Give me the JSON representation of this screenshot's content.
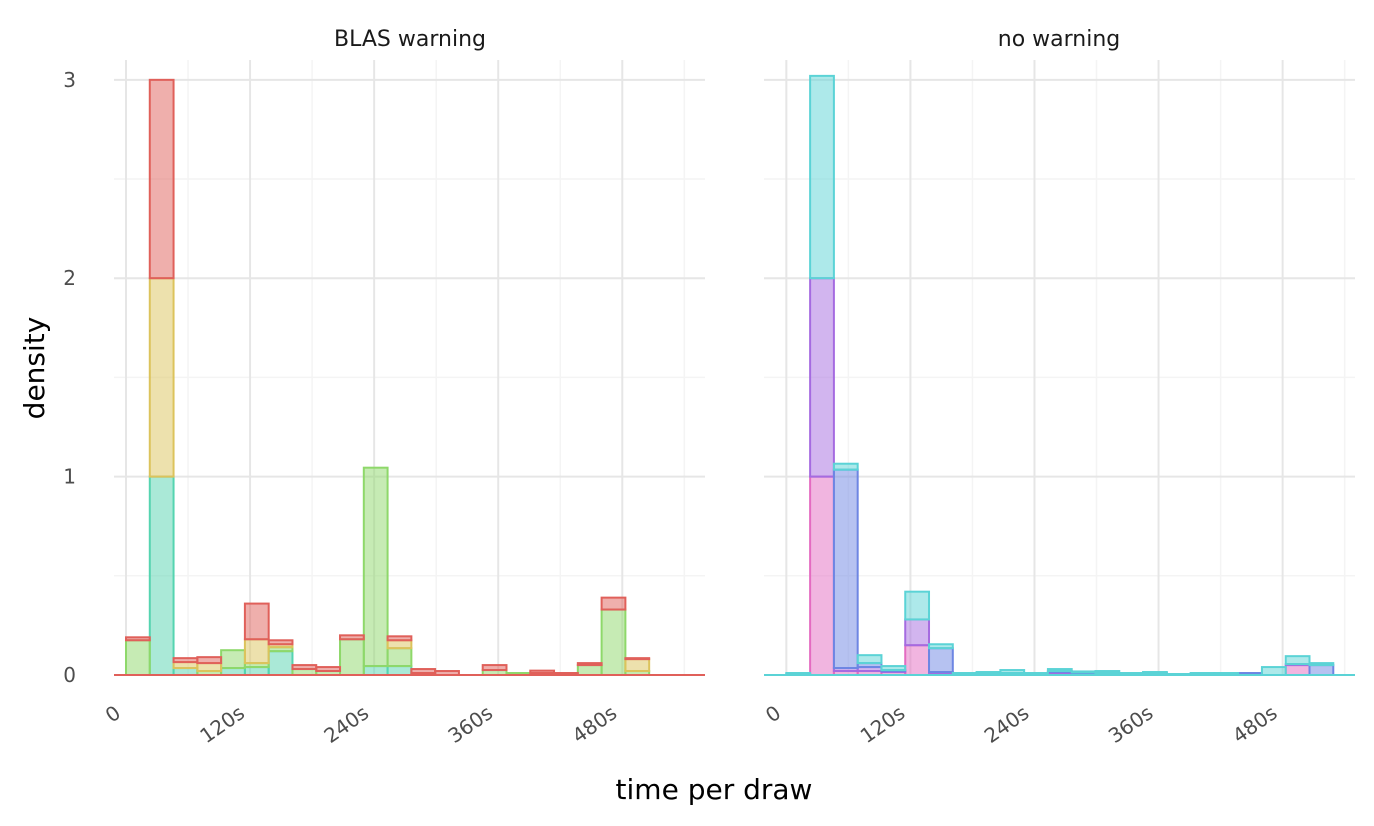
{
  "chart_data": {
    "type": "bar",
    "subtype": "stacked histogram, faceted",
    "xlabel": "time per draw",
    "ylabel": "density",
    "x_tick_labels": [
      "0",
      "120s",
      "240s",
      "360s",
      "480s"
    ],
    "y_tick_labels": [
      "0",
      "1",
      "2",
      "3"
    ],
    "xlim": [
      0,
      560
    ],
    "ylim": [
      0,
      3.1
    ],
    "bin_width": 23,
    "grid": true,
    "legend": "none",
    "colors": {
      "red": "#E0605A",
      "yellow": "#DCC35C",
      "green": "#8ED86A",
      "teal": "#55D4B0",
      "cyan": "#5BD3D6",
      "purple": "#A56BE0",
      "blue": "#6D86E3",
      "pink": "#E46BC1"
    },
    "facets": [
      {
        "title": "BLAS warning",
        "x_ticks": [
          0,
          120,
          240,
          360,
          480
        ],
        "x_offset": 0,
        "series": [
          {
            "color": "teal",
            "bins": [
              [
                23,
                1.0
              ],
              [
                46,
                0.035
              ],
              [
                92,
                0.035
              ],
              [
                115,
                0.04
              ],
              [
                138,
                0.12
              ],
              [
                230,
                0.045
              ],
              [
                253,
                0.045
              ]
            ]
          },
          {
            "color": "green",
            "bins": [
              [
                0,
                0.175
              ],
              [
                69,
                0.02
              ],
              [
                92,
                0.09
              ],
              [
                115,
                0.02
              ],
              [
                138,
                0.02
              ],
              [
                161,
                0.03
              ],
              [
                184,
                0.02
              ],
              [
                207,
                0.18
              ],
              [
                230,
                1.0
              ],
              [
                253,
                0.09
              ],
              [
                276,
                0.01
              ],
              [
                345,
                0.025
              ],
              [
                368,
                0.01
              ],
              [
                391,
                0.01
              ],
              [
                437,
                0.05
              ],
              [
                460,
                0.33
              ],
              [
                483,
                0.02
              ]
            ]
          },
          {
            "color": "yellow",
            "bins": [
              [
                23,
                1.0
              ],
              [
                46,
                0.03
              ],
              [
                69,
                0.04
              ],
              [
                115,
                0.12
              ],
              [
                138,
                0.015
              ],
              [
                253,
                0.04
              ],
              [
                483,
                0.06
              ]
            ]
          },
          {
            "color": "red",
            "bins": [
              [
                0,
                0.015
              ],
              [
                23,
                1.0
              ],
              [
                46,
                0.02
              ],
              [
                69,
                0.03
              ],
              [
                115,
                0.18
              ],
              [
                138,
                0.02
              ],
              [
                161,
                0.02
              ],
              [
                184,
                0.02
              ],
              [
                207,
                0.02
              ],
              [
                253,
                0.02
              ],
              [
                276,
                0.02
              ],
              [
                299,
                0.02
              ],
              [
                345,
                0.025
              ],
              [
                391,
                0.012
              ],
              [
                414,
                0.01
              ],
              [
                437,
                0.01
              ],
              [
                460,
                0.06
              ],
              [
                483,
                0.005
              ]
            ]
          }
        ]
      },
      {
        "title": "no warning",
        "x_ticks": [
          0,
          120,
          240,
          360,
          480
        ],
        "x_offset": 10,
        "series": [
          {
            "color": "pink",
            "bins": [
              [
                23,
                1.0
              ],
              [
                46,
                0.02
              ],
              [
                69,
                0.02
              ],
              [
                92,
                0.015
              ],
              [
                115,
                0.15
              ],
              [
                138,
                0.01
              ],
              [
                207,
                0.005
              ],
              [
                253,
                0.005
              ],
              [
                322,
                0.005
              ],
              [
                437,
                0.005
              ],
              [
                483,
                0.05
              ]
            ]
          },
          {
            "color": "purple",
            "bins": [
              [
                23,
                1.0
              ],
              [
                46,
                0.015
              ],
              [
                69,
                0.02
              ],
              [
                92,
                0.005
              ],
              [
                115,
                0.13
              ],
              [
                138,
                0.005
              ],
              [
                184,
                0.005
              ],
              [
                253,
                0.01
              ],
              [
                276,
                0.008
              ],
              [
                299,
                0.005
              ],
              [
                345,
                0.005
              ],
              [
                391,
                0.005
              ],
              [
                483,
                0.005
              ]
            ]
          },
          {
            "color": "blue",
            "bins": [
              [
                0,
                0.005
              ],
              [
                46,
                1.0
              ],
              [
                69,
                0.02
              ],
              [
                92,
                0.005
              ],
              [
                138,
                0.12
              ],
              [
                161,
                0.005
              ],
              [
                207,
                0.005
              ],
              [
                253,
                0.005
              ],
              [
                276,
                0.005
              ],
              [
                299,
                0.005
              ],
              [
                345,
                0.005
              ],
              [
                437,
                0.005
              ],
              [
                506,
                0.05
              ]
            ]
          },
          {
            "color": "cyan",
            "bins": [
              [
                0,
                0.005
              ],
              [
                23,
                1.02
              ],
              [
                46,
                0.03
              ],
              [
                69,
                0.04
              ],
              [
                92,
                0.02
              ],
              [
                115,
                0.14
              ],
              [
                138,
                0.02
              ],
              [
                161,
                0.005
              ],
              [
                184,
                0.01
              ],
              [
                207,
                0.015
              ],
              [
                230,
                0.01
              ],
              [
                253,
                0.01
              ],
              [
                276,
                0.005
              ],
              [
                299,
                0.01
              ],
              [
                322,
                0.005
              ],
              [
                345,
                0.005
              ],
              [
                368,
                0.005
              ],
              [
                391,
                0.005
              ],
              [
                414,
                0.01
              ],
              [
                460,
                0.04
              ],
              [
                483,
                0.04
              ],
              [
                506,
                0.01
              ]
            ]
          }
        ]
      }
    ]
  }
}
